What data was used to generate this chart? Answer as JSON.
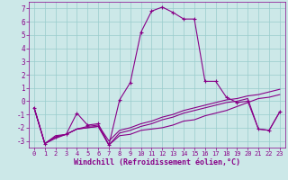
{
  "xlabel": "Windchill (Refroidissement éolien,°C)",
  "xlim": [
    -0.5,
    23.5
  ],
  "ylim": [
    -3.5,
    7.5
  ],
  "yticks": [
    -3,
    -2,
    -1,
    0,
    1,
    2,
    3,
    4,
    5,
    6,
    7
  ],
  "xticks": [
    0,
    1,
    2,
    3,
    4,
    5,
    6,
    7,
    8,
    9,
    10,
    11,
    12,
    13,
    14,
    15,
    16,
    17,
    18,
    19,
    20,
    21,
    22,
    23
  ],
  "background_color": "#cce8e8",
  "line_color": "#880088",
  "grid_color": "#99cccc",
  "line1_x": [
    0,
    1,
    2,
    3,
    4,
    5,
    6,
    7,
    8,
    9,
    10,
    11,
    12,
    13,
    14,
    15,
    16,
    17,
    18,
    19,
    20,
    21,
    22,
    23
  ],
  "line1_y": [
    -0.5,
    -3.2,
    -2.7,
    -2.5,
    -0.9,
    -1.8,
    -1.7,
    -3.3,
    0.1,
    1.4,
    5.2,
    6.8,
    7.1,
    6.7,
    6.2,
    6.2,
    1.5,
    1.5,
    0.3,
    -0.1,
    -0.0,
    -2.1,
    -2.2,
    -0.8
  ],
  "line2_x": [
    0,
    1,
    2,
    3,
    4,
    5,
    6,
    7,
    8,
    9,
    10,
    11,
    12,
    13,
    14,
    15,
    16,
    17,
    18,
    19,
    20,
    21,
    22,
    23
  ],
  "line2_y": [
    -0.5,
    -3.2,
    -2.7,
    -2.5,
    -2.1,
    -2.0,
    -1.9,
    -3.3,
    -2.6,
    -2.5,
    -2.2,
    -2.1,
    -2.0,
    -1.8,
    -1.5,
    -1.4,
    -1.1,
    -0.9,
    -0.7,
    -0.4,
    -0.1,
    0.2,
    0.3,
    0.5
  ],
  "line3_x": [
    0,
    1,
    2,
    3,
    4,
    5,
    6,
    7,
    8,
    9,
    10,
    11,
    12,
    13,
    14,
    15,
    16,
    17,
    18,
    19,
    20,
    21,
    22,
    23
  ],
  "line3_y": [
    -0.5,
    -3.2,
    -2.6,
    -2.5,
    -2.1,
    -1.9,
    -1.8,
    -3.0,
    -2.2,
    -2.0,
    -1.7,
    -1.5,
    -1.2,
    -1.0,
    -0.7,
    -0.5,
    -0.3,
    -0.1,
    0.1,
    0.2,
    0.4,
    0.5,
    0.7,
    0.9
  ],
  "line4_x": [
    0,
    1,
    2,
    3,
    4,
    5,
    6,
    7,
    8,
    9,
    10,
    11,
    12,
    13,
    14,
    15,
    16,
    17,
    18,
    19,
    20,
    21,
    22,
    23
  ],
  "line4_y": [
    -0.5,
    -3.2,
    -2.8,
    -2.5,
    -2.1,
    -2.0,
    -1.9,
    -3.3,
    -2.4,
    -2.2,
    -1.9,
    -1.7,
    -1.4,
    -1.2,
    -0.9,
    -0.7,
    -0.5,
    -0.3,
    -0.1,
    0.0,
    0.2,
    -2.1,
    -2.2,
    -0.8
  ],
  "xlabel_fontsize": 6,
  "tick_fontsize_x": 5,
  "tick_fontsize_y": 5.5
}
